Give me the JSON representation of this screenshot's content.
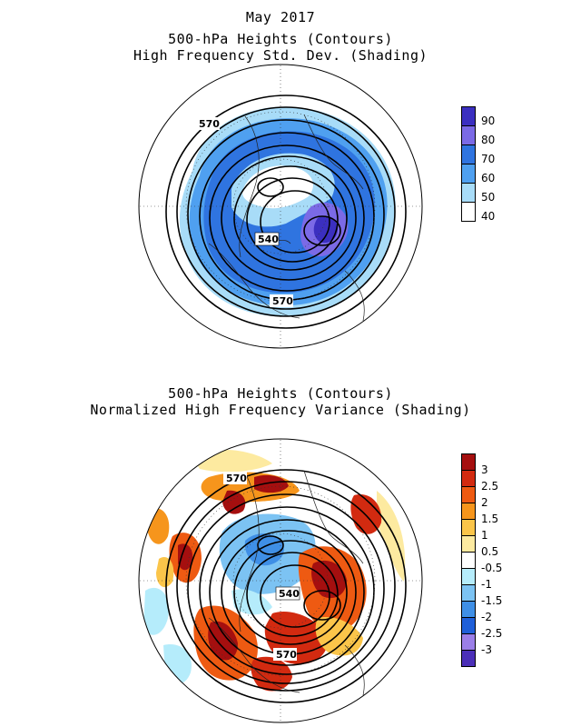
{
  "top_panel": {
    "title_line1": "May 2017",
    "title_line2": "500-hPa Heights (Contours)",
    "title_line3": "High Frequency Std. Dev. (Shading)",
    "contour_labels": [
      "570",
      "540",
      "570"
    ],
    "colorbar": {
      "labels": [
        "90",
        "80",
        "70",
        "60",
        "50",
        "40"
      ],
      "colors": [
        "#3b2fc0",
        "#7b6ae6",
        "#2f74e0",
        "#4fa0f0",
        "#a8dcf8",
        "#ffffff"
      ]
    }
  },
  "bottom_panel": {
    "title_line1": "500-hPa Heights (Contours)",
    "title_line2": "Normalized High Frequency Variance (Shading)",
    "contour_labels": [
      "570",
      "540",
      "570"
    ],
    "colorbar": {
      "labels": [
        "3",
        "2.5",
        "2",
        "1.5",
        "1",
        "0.5",
        "-0.5",
        "-1",
        "-1.5",
        "-2",
        "-2.5",
        "-3"
      ],
      "colors": [
        "#a50f0f",
        "#d22a10",
        "#ee5a12",
        "#f6951c",
        "#fbc54a",
        "#fdeaa0",
        "#ffffff",
        "#b5ecfb",
        "#7cc3f3",
        "#3f8fe6",
        "#1f5fd8",
        "#9b7fe8",
        "#4b2fb8"
      ]
    }
  }
}
